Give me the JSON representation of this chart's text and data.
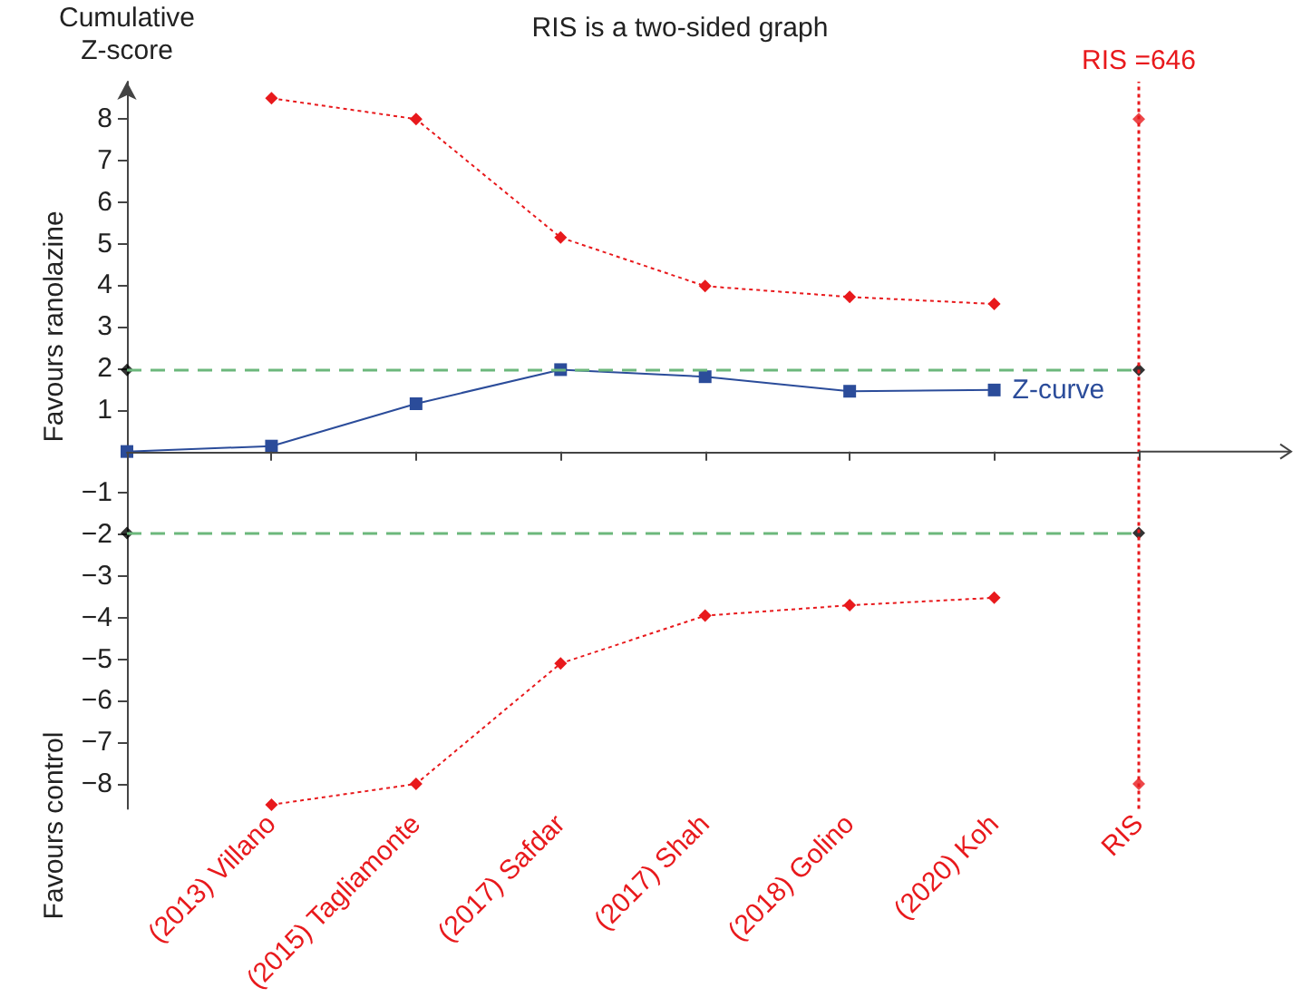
{
  "chart_data": {
    "type": "line",
    "title": "RIS is a two-sided graph",
    "ylabel": "Cumulative Z-score",
    "categories": [
      null,
      "(2013) Villano",
      "(2015) Tagliamonte",
      "(2017) Safdar",
      "(2017) Shah",
      "(2018) Golino",
      "(2020) Koh",
      "RIS"
    ],
    "series": [
      {
        "name": "Z-curve",
        "color": "#2b4c9a",
        "values": [
          0,
          0.13,
          1.15,
          1.97,
          1.8,
          1.45,
          1.48,
          null
        ],
        "marker": "square",
        "line_style": "solid"
      },
      {
        "color": "#e8191c",
        "values": [
          null,
          8.5,
          8.0,
          5.15,
          3.98,
          3.72,
          3.55,
          null
        ],
        "marker": "diamond",
        "line_style": "dotted"
      },
      {
        "color": "#e8191c",
        "values": [
          null,
          -8.5,
          -8.0,
          -5.1,
          -3.95,
          -3.7,
          -3.52,
          null
        ],
        "marker": "diamond",
        "line_style": "dotted"
      },
      {
        "type": "scatter",
        "color": "#e8191c",
        "x": [
          "RIS",
          "RIS"
        ],
        "values": [
          -8,
          8
        ],
        "marker": "diamond"
      },
      {
        "type": "scatter",
        "color": "#000000",
        "values": [
          1.96,
          null,
          null,
          null,
          null,
          null,
          null,
          1.96
        ],
        "marker": "diamond"
      },
      {
        "type": "scatter",
        "color": "#000000",
        "values": [
          -1.96,
          null,
          null,
          null,
          null,
          null,
          null,
          -1.96
        ],
        "marker": "diamond"
      }
    ],
    "ref_lines": [
      {
        "axis": "y",
        "value": 1.96,
        "color": "#6cb87c",
        "line_style": "dashed"
      },
      {
        "axis": "y",
        "value": -1.96,
        "color": "#6cb87c",
        "line_style": "dashed"
      },
      {
        "axis": "x",
        "value": "RIS",
        "label": "RIS =646",
        "color": "#e8191c",
        "line_style": "dotted"
      }
    ],
    "annotations": [
      "Favours ranolazine",
      "Favours control"
    ],
    "ylim": [
      -8.6,
      8.9
    ],
    "yticks": [
      -8,
      -7,
      -6,
      -5,
      -4,
      -3,
      -2,
      -1,
      1,
      2,
      3,
      4,
      5,
      6,
      7,
      8
    ],
    "grid": false,
    "legend": false
  }
}
